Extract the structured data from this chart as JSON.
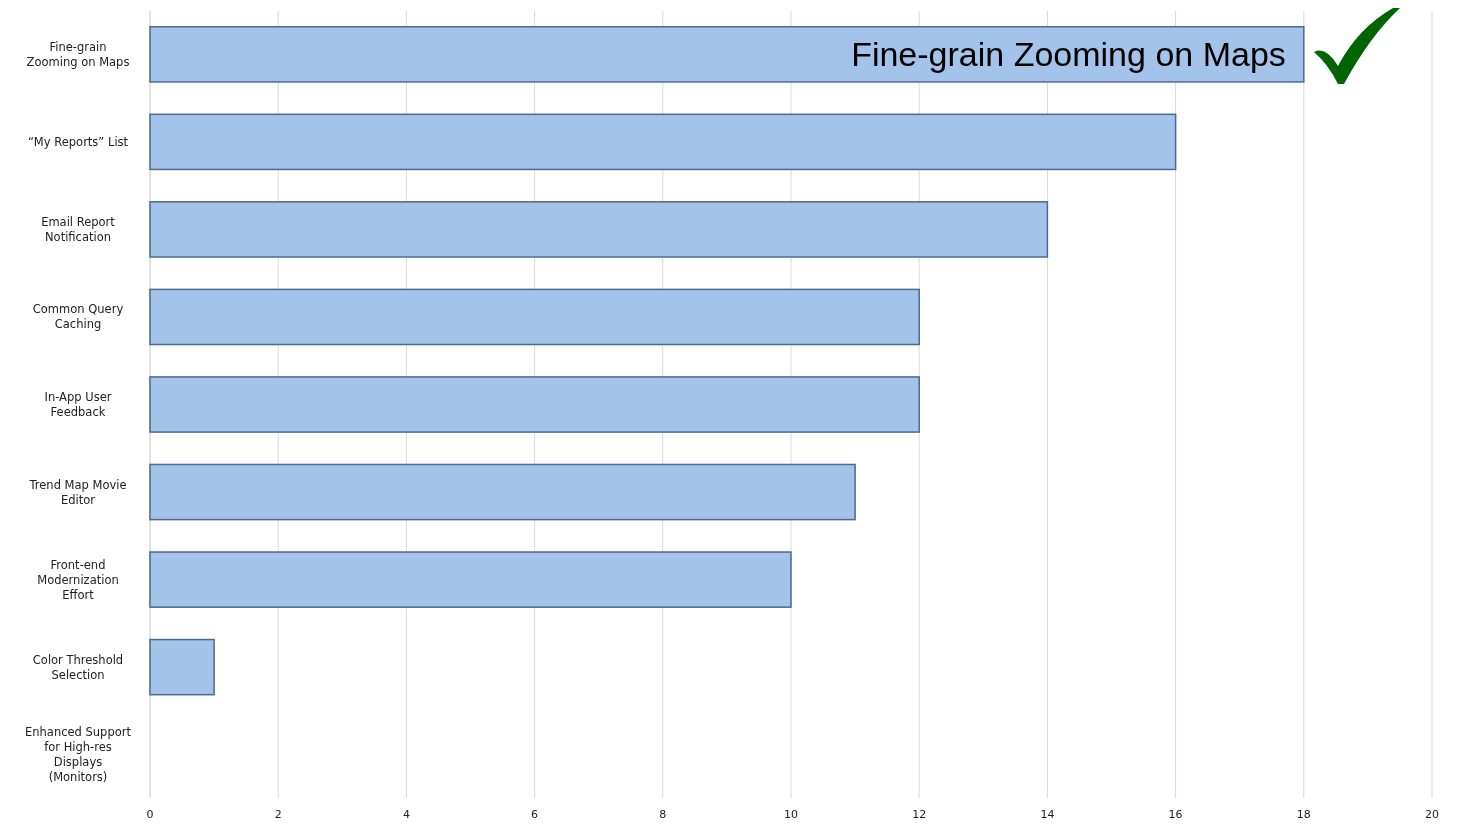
{
  "chart_data": {
    "type": "bar",
    "orientation": "horizontal",
    "categories": [
      "Fine-grain Zooming on Maps",
      "“My Reports” List",
      "Email Report Notification",
      "Common Query Caching",
      "In-App User Feedback",
      "Trend Map Movie Editor",
      "Front-end Modernization Effort",
      "Color Threshold Selection",
      "Enhanced Support for High-res Displays (Monitors)"
    ],
    "values": [
      18,
      16,
      14,
      12,
      12,
      11,
      10,
      1,
      0
    ],
    "color": "#a3c3ea",
    "xlim": [
      0,
      20
    ],
    "xticks": [
      0,
      2,
      4,
      6,
      8,
      10,
      12,
      14,
      16,
      18,
      20
    ],
    "grid": "x",
    "annotations": [
      {
        "text": "Fine-grain Zooming on Maps",
        "x": 18,
        "y": "Fine-grain Zooming on Maps"
      }
    ]
  }
}
